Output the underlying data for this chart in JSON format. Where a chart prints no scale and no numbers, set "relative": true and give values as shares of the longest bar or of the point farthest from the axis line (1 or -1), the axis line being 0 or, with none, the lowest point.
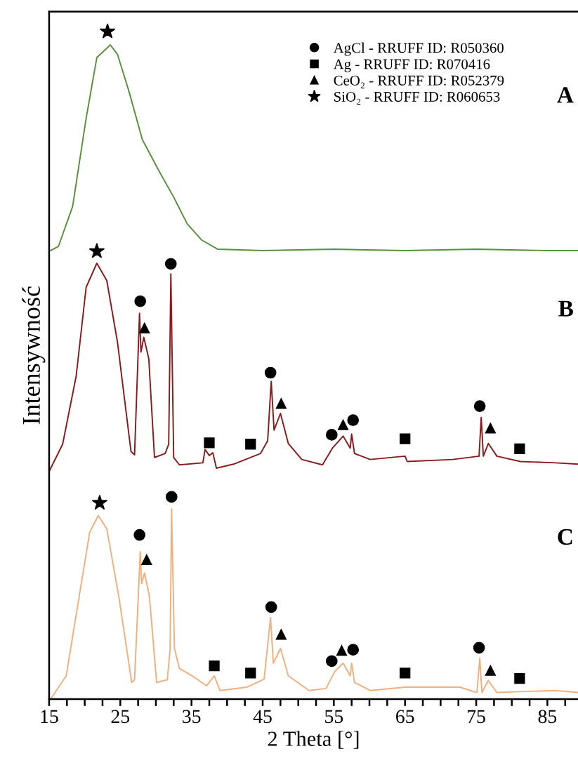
{
  "chart_data": {
    "type": "line",
    "xlabel": "2 Theta [°]",
    "ylabel": "Intensywność",
    "relative": true,
    "tick_labels": "x",
    "legend": "top right",
    "xlim": [
      15,
      89.3
    ],
    "xticks": [
      {
        "value": 15,
        "label": "15"
      },
      {
        "value": 17.5,
        "label": null
      },
      {
        "value": 20,
        "label": null
      },
      {
        "value": 22.5,
        "label": null
      },
      {
        "value": 25,
        "label": "25"
      },
      {
        "value": 27.5,
        "label": null
      },
      {
        "value": 30,
        "label": null
      },
      {
        "value": 32.5,
        "label": null
      },
      {
        "value": 35,
        "label": "35"
      },
      {
        "value": 37.5,
        "label": null
      },
      {
        "value": 40,
        "label": null
      },
      {
        "value": 42.5,
        "label": null
      },
      {
        "value": 45,
        "label": "45"
      },
      {
        "value": 47.5,
        "label": null
      },
      {
        "value": 50,
        "label": null
      },
      {
        "value": 52.5,
        "label": null
      },
      {
        "value": 55,
        "label": "55"
      },
      {
        "value": 57.5,
        "label": null
      },
      {
        "value": 60,
        "label": null
      },
      {
        "value": 62.5,
        "label": null
      },
      {
        "value": 65,
        "label": "65"
      },
      {
        "value": 67.5,
        "label": null
      },
      {
        "value": 70,
        "label": null
      },
      {
        "value": 72.5,
        "label": null
      },
      {
        "value": 75,
        "label": "75"
      },
      {
        "value": 77.5,
        "label": null
      },
      {
        "value": 80,
        "label": null
      },
      {
        "value": 82.5,
        "label": null
      },
      {
        "value": 85,
        "label": "85"
      },
      {
        "value": 87.5,
        "label": null
      }
    ],
    "series": [
      {
        "type": "line",
        "color": "#5a8f3c",
        "x": [
          15.2,
          16.3,
          18.3,
          20.2,
          21.7,
          23.6,
          24.6,
          26.2,
          28.1,
          30.5,
          32.5,
          34.4,
          36.4,
          38.7,
          45,
          55,
          65,
          75,
          85,
          89.3
        ],
        "values": [
          0.672,
          0.678,
          0.738,
          0.87,
          0.961,
          0.98,
          0.966,
          0.911,
          0.838,
          0.79,
          0.752,
          0.712,
          0.688,
          0.674,
          0.672,
          0.674,
          0.672,
          0.674,
          0.672,
          0.672
        ]
      },
      {
        "type": "line",
        "color": "#8b1a1a",
        "x": [
          15.0,
          16.9,
          18.8,
          20.2,
          21.7,
          23.1,
          24.6,
          26.5,
          27.0,
          27.7,
          27.9,
          28.3,
          29.0,
          29.8,
          31.3,
          31.8,
          32.1,
          32.5,
          33.3,
          36.6,
          36.9,
          37.5,
          38.0,
          38.5,
          40.9,
          44.7,
          45.7,
          46.2,
          46.6,
          47.5,
          48.6,
          50.5,
          53.4,
          54.8,
          56.3,
          57.3,
          57.5,
          57.9,
          60.1,
          65.0,
          65.3,
          71.7,
          75.4,
          75.7,
          76.0,
          76.7,
          77.9,
          81.2,
          86.1,
          89.3
        ],
        "values": [
          0.341,
          0.382,
          0.484,
          0.617,
          0.653,
          0.627,
          0.535,
          0.371,
          0.366,
          0.578,
          0.52,
          0.542,
          0.51,
          0.362,
          0.368,
          0.382,
          0.637,
          0.362,
          0.351,
          0.354,
          0.374,
          0.365,
          0.369,
          0.346,
          0.352,
          0.368,
          0.387,
          0.476,
          0.403,
          0.428,
          0.383,
          0.359,
          0.351,
          0.376,
          0.394,
          0.376,
          0.397,
          0.368,
          0.359,
          0.364,
          0.356,
          0.359,
          0.364,
          0.422,
          0.364,
          0.383,
          0.364,
          0.356,
          0.354,
          0.352
        ]
      },
      {
        "type": "line",
        "color": "#f0b07e",
        "x": [
          15.2,
          17.4,
          19.2,
          20.7,
          21.9,
          23.1,
          24.8,
          26.6,
          27.0,
          27.8,
          28.0,
          28.4,
          29.1,
          30.1,
          31.6,
          32.0,
          32.2,
          32.6,
          33.3,
          35.1,
          37.1,
          38.2,
          39.0,
          42.8,
          45.2,
          46.1,
          46.5,
          47.5,
          48.6,
          51.5,
          53.9,
          55.1,
          56.3,
          57.3,
          57.5,
          57.9,
          60.1,
          65.0,
          72.7,
          75.1,
          75.5,
          75.8,
          76.7,
          77.9,
          86.1,
          89.3
        ],
        "values": [
          0.0,
          0.035,
          0.153,
          0.25,
          0.275,
          0.255,
          0.153,
          0.025,
          0.029,
          0.221,
          0.173,
          0.189,
          0.153,
          0.025,
          0.029,
          0.076,
          0.285,
          0.076,
          0.046,
          0.035,
          0.02,
          0.035,
          0.013,
          0.018,
          0.03,
          0.122,
          0.054,
          0.076,
          0.035,
          0.013,
          0.016,
          0.041,
          0.054,
          0.035,
          0.054,
          0.025,
          0.013,
          0.018,
          0.018,
          0.01,
          0.061,
          0.01,
          0.028,
          0.01,
          0.013,
          0.01
        ]
      },
      {
        "name": "AgCl - RRUFF ID: R050360",
        "type": "scatter",
        "marker": "circle",
        "color": "#000000",
        "x": [
          32.1,
          27.8,
          46.1,
          54.7,
          57.7,
          75.5,
          32.2,
          27.7,
          46.2,
          54.7,
          57.7,
          75.4
        ],
        "values": [
          0.652,
          0.596,
          0.489,
          0.396,
          0.418,
          0.439,
          0.303,
          0.246,
          0.138,
          0.057,
          0.074,
          0.077
        ]
      },
      {
        "name": "Ag - RRUFF ID: R070416",
        "type": "scatter",
        "marker": "square",
        "color": "#000000",
        "x": [
          37.5,
          43.3,
          65.0,
          81.1,
          38.2,
          43.3,
          65.0,
          81.1
        ],
        "values": [
          0.384,
          0.382,
          0.39,
          0.375,
          0.05,
          0.039,
          0.039,
          0.031
        ]
      },
      {
        "name": "CeO₂ - RRUFF ID: R052379",
        "type": "scatter",
        "marker": "triangle",
        "color": "#000000",
        "x": [
          28.4,
          47.6,
          56.3,
          77.0,
          28.7,
          47.6,
          56.1,
          77.0
        ],
        "values": [
          0.556,
          0.443,
          0.411,
          0.406,
          0.209,
          0.097,
          0.073,
          0.043
        ]
      },
      {
        "name": "SiO₂ - RRUFF ID: R060653",
        "type": "scatter",
        "marker": "star",
        "color": "#000000",
        "x": [
          23.2,
          21.7,
          22.1
        ],
        "values": [
          1.0,
          0.671,
          0.294
        ]
      }
    ],
    "annotations": [
      "A",
      "B",
      "C"
    ]
  }
}
